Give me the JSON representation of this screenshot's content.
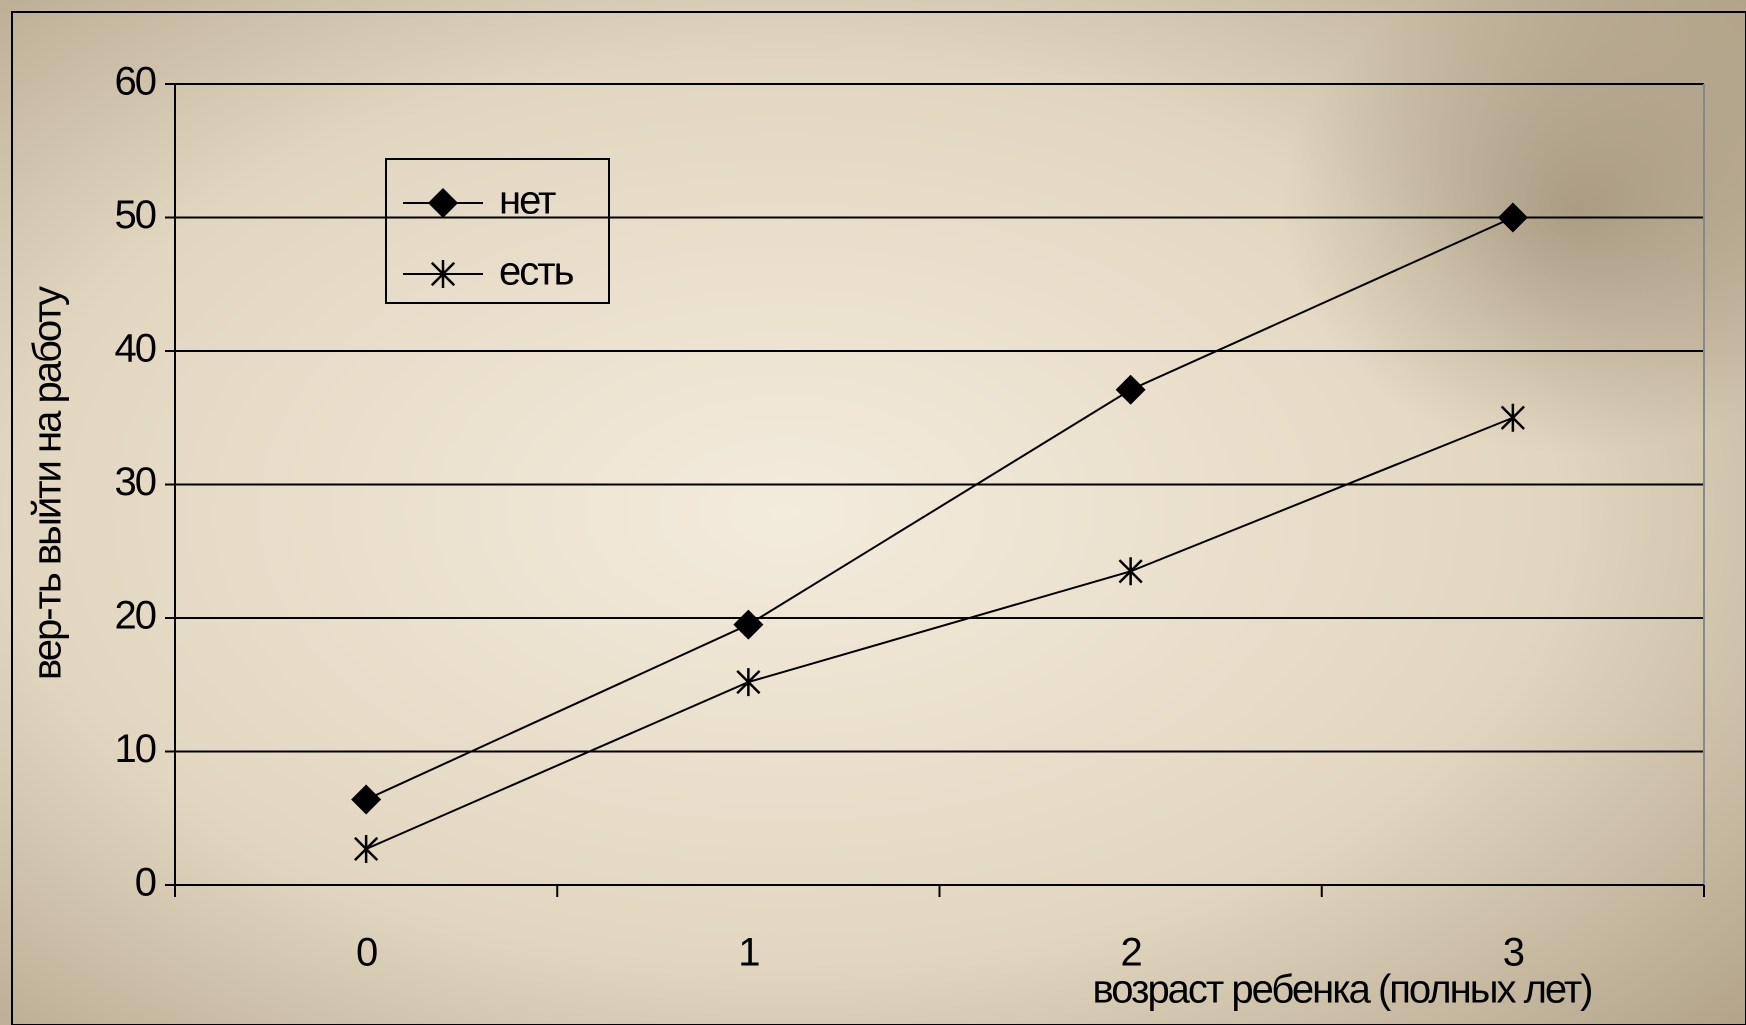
{
  "chart_data": {
    "type": "line",
    "y_label": "вер-ть выйти на работу",
    "x_label": "возраст ребенка (полных лет)",
    "categories": [
      "0",
      "1",
      "2",
      "3"
    ],
    "series": [
      {
        "name": "нет",
        "color": "#000000",
        "marker": "diamond",
        "values": [
          6.4,
          19.5,
          37.1,
          50
        ]
      },
      {
        "name": "есть",
        "color": "#000000",
        "marker": "asterisk",
        "values": [
          2.7,
          15.2,
          23.5,
          35
        ]
      }
    ],
    "ylim": [
      0,
      60
    ],
    "yticks": [
      0,
      10,
      20,
      30,
      40,
      50,
      60
    ],
    "grid": true,
    "legend": "top-left"
  }
}
